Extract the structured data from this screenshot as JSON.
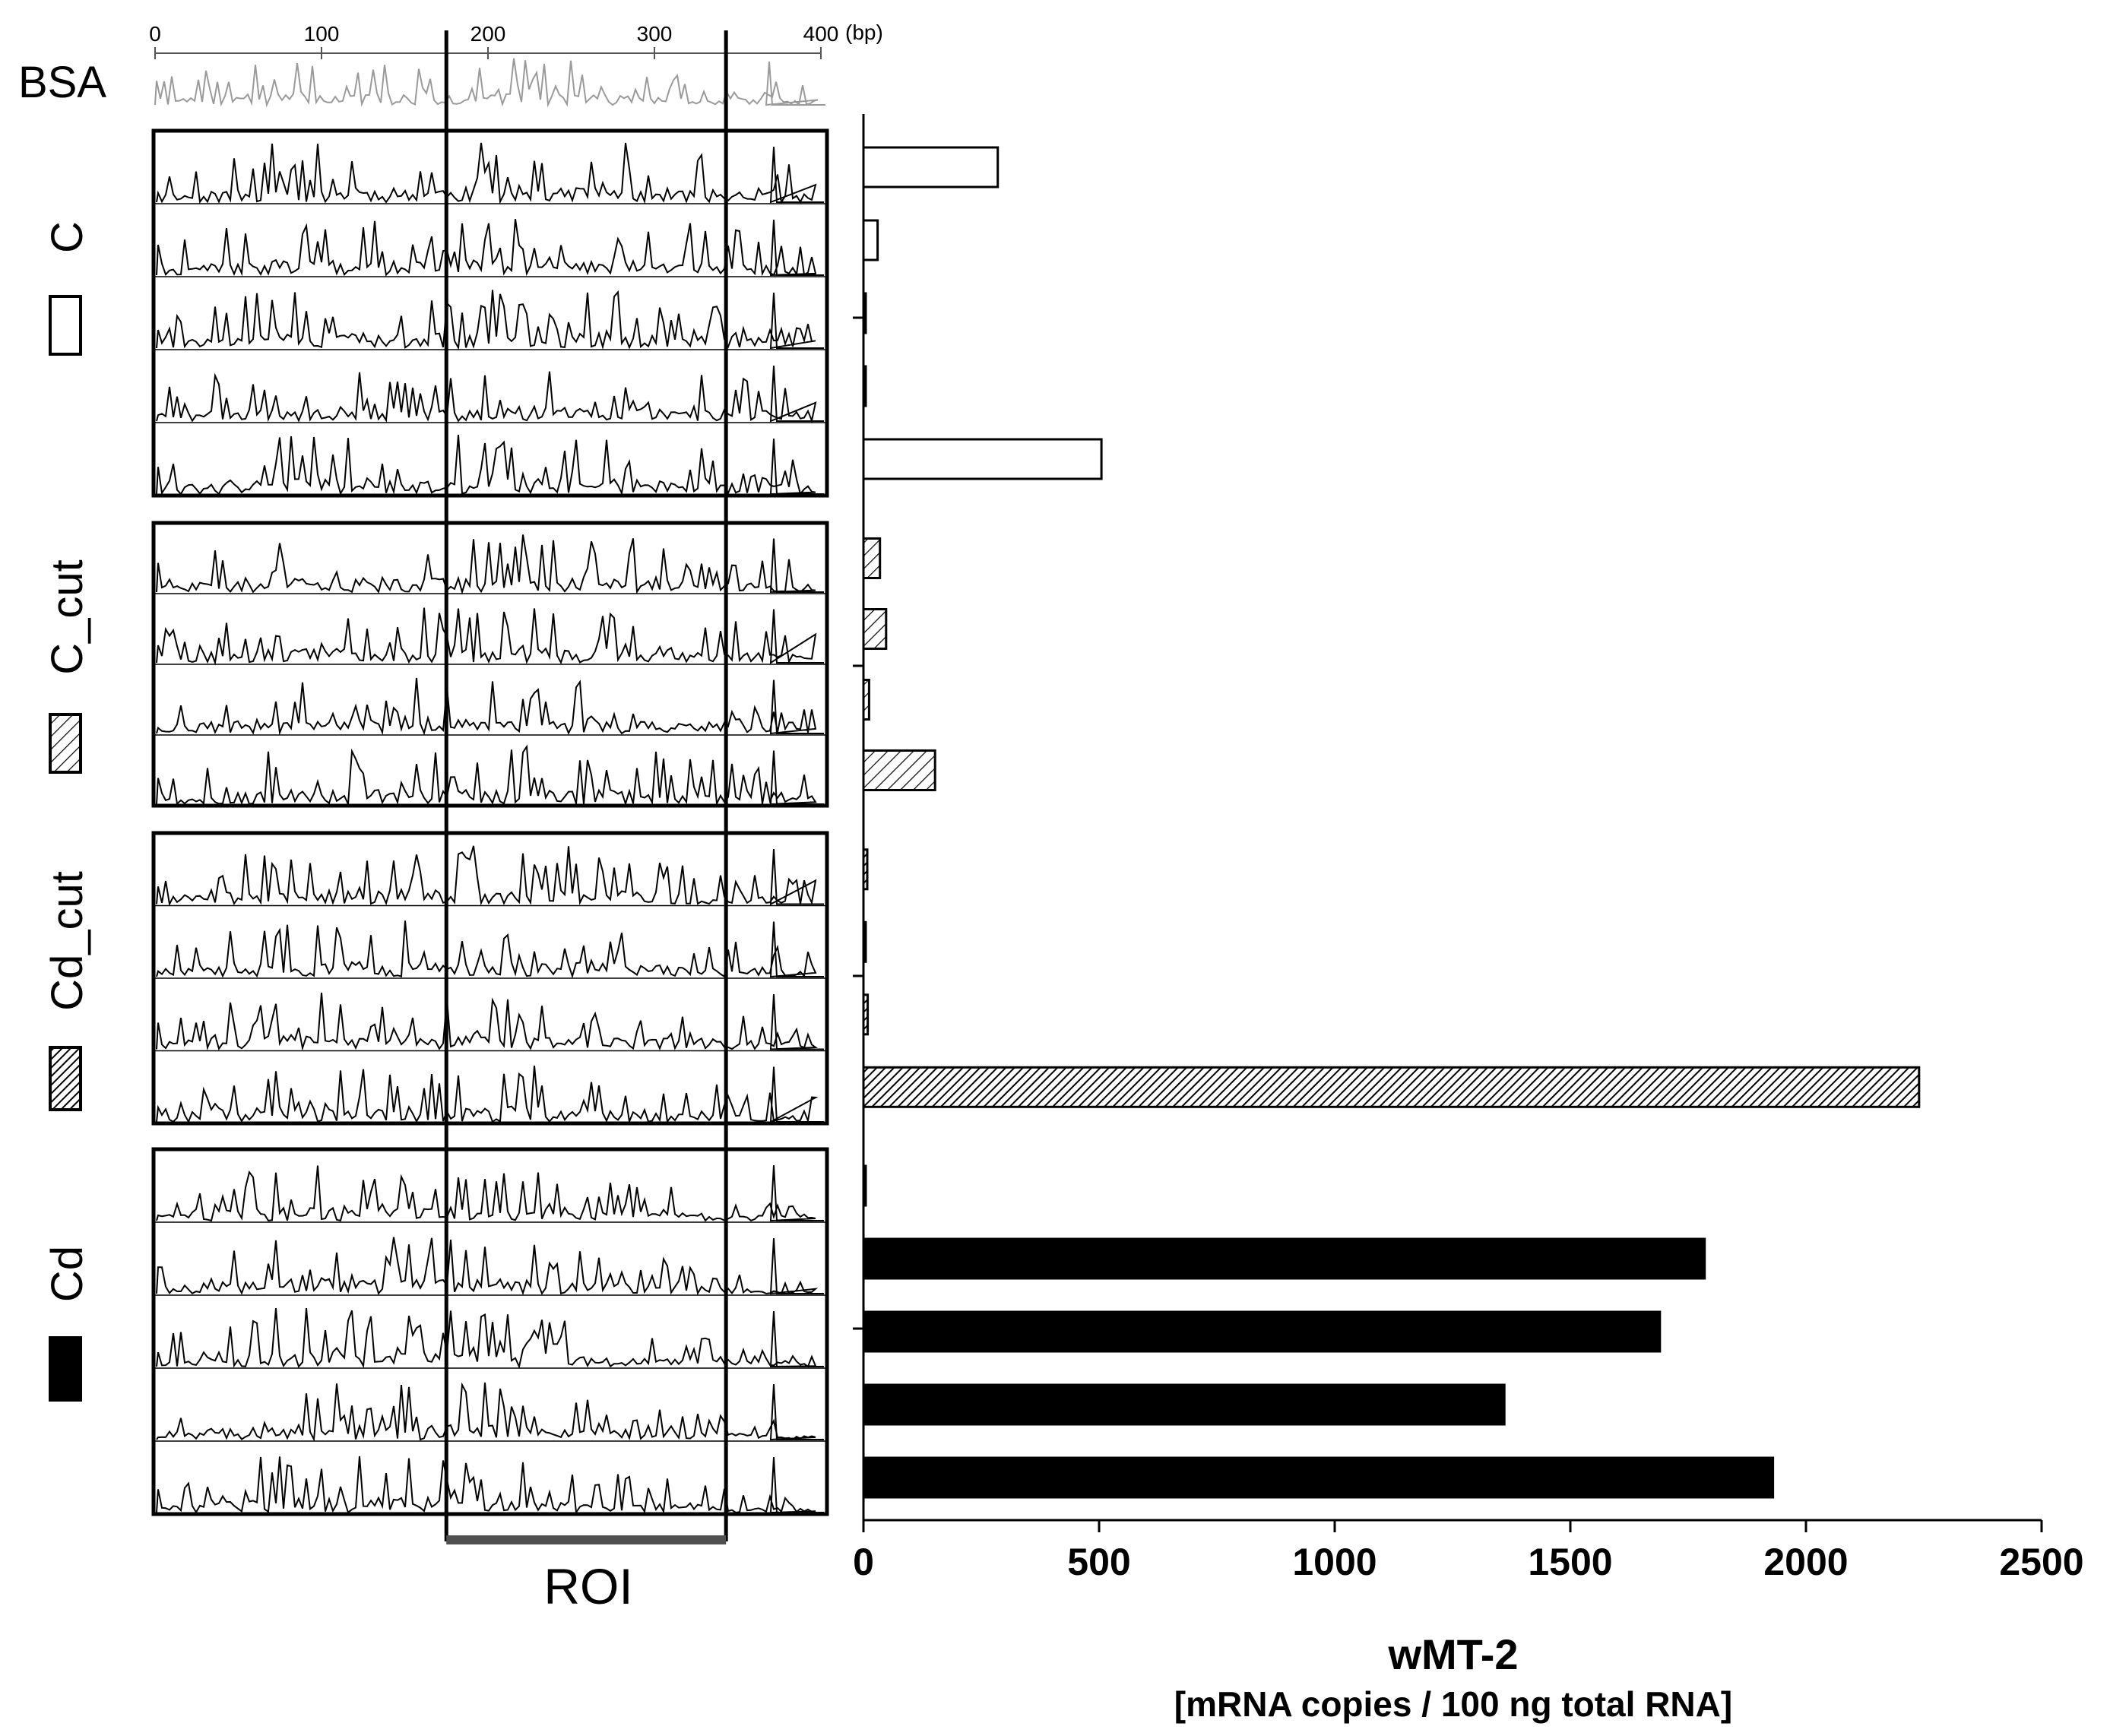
{
  "figure": {
    "bsa_label": "BSA",
    "bp_unit": "(bp)",
    "roi_label": "ROI",
    "group_labels": [
      "C",
      "C_cut",
      "Cd_cut",
      "Cd"
    ],
    "legend_fills": [
      "open",
      "hatch-light",
      "hatch-dense",
      "solid"
    ]
  },
  "bp_axis": {
    "ticks": [
      0,
      100,
      200,
      300,
      400
    ],
    "range": [
      0,
      400
    ],
    "roi_bp": [
      175,
      343
    ]
  },
  "chart_data": {
    "type": "bar",
    "orientation": "horizontal",
    "xlabel": "wMT-2",
    "xlabel_sub": "[mRNA copies / 100 ng total RNA]",
    "xlim": [
      0,
      2500
    ],
    "xticks": [
      0,
      500,
      1000,
      1500,
      2000,
      2500
    ],
    "groups": [
      {
        "name": "C",
        "fill": "open",
        "values": [
          285,
          30,
          2,
          1,
          505
        ]
      },
      {
        "name": "C_cut",
        "fill": "hatch-light",
        "values": [
          35,
          48,
          12,
          152
        ]
      },
      {
        "name": "Cd_cut",
        "fill": "hatch-dense",
        "values": [
          8,
          4,
          9,
          2240
        ]
      },
      {
        "name": "Cd",
        "fill": "solid",
        "values": [
          3,
          1785,
          1690,
          1360,
          1930
        ]
      }
    ]
  },
  "colors": {
    "trace": "#000000",
    "bsa_trace": "#9a9a9a",
    "roi_bar": "#505050",
    "axis": "#000000"
  }
}
